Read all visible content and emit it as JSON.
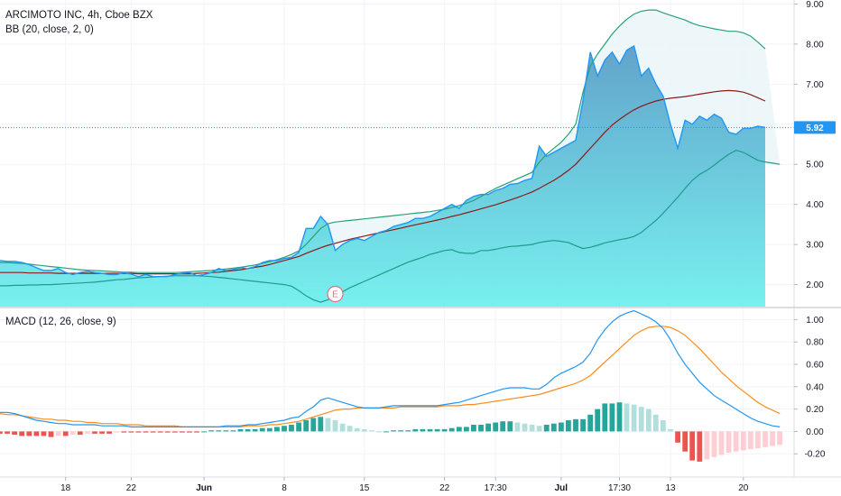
{
  "header": {
    "title": "ARCIMOTO INC, 4h, Cboe BZX",
    "bb_label": "BB (20, close, 2, 0)",
    "macd_label": "MACD (12, 26, close, 9)",
    "earnings_marker": "E"
  },
  "colors": {
    "price_line": "#2196f3",
    "price_fill_top": "#5b9fc9",
    "price_fill_bottom": "#70f0ee",
    "bb_upper": "#26a278",
    "bb_basis": "#8b1a1a",
    "bb_lower": "#1e9c8c",
    "bb_band_fill": "#e8f5f7",
    "macd_line": "#2196f3",
    "signal_line": "#ff8c1a",
    "hist_pos_strong": "#26a69a",
    "hist_pos_weak": "#b2dfdb",
    "hist_neg_strong": "#ef5350",
    "hist_neg_weak": "#ffcdd2",
    "last_price_badge": "#2196f3",
    "earnings_marker": "#e86b7f"
  },
  "chart_data": [
    {
      "type": "line",
      "name": "price",
      "title": "ARCIMOTO INC, 4h, Cboe BZX",
      "ylim": [
        1.45,
        9.1
      ],
      "yticks": [
        "9.00",
        "8.00",
        "7.00",
        "6.00",
        "5.00",
        "4.00",
        "3.00",
        "2.00"
      ],
      "last_price": "5.92",
      "x_ticks": [
        "18",
        "22",
        "Jun",
        "8",
        "15",
        "22",
        "17:30",
        "Jul",
        "17:30",
        "13",
        "20"
      ],
      "x_tick_index": [
        9,
        18,
        28,
        39,
        50,
        61,
        68,
        77,
        85,
        92,
        102
      ],
      "earnings_index": 46,
      "close": [
        2.6,
        2.58,
        2.58,
        2.55,
        2.5,
        2.42,
        2.35,
        2.35,
        2.4,
        2.3,
        2.25,
        2.3,
        2.33,
        2.3,
        2.28,
        2.25,
        2.25,
        2.3,
        2.26,
        2.2,
        2.25,
        2.2,
        2.2,
        2.2,
        2.25,
        2.28,
        2.3,
        2.22,
        2.25,
        2.3,
        2.4,
        2.35,
        2.38,
        2.42,
        2.4,
        2.45,
        2.55,
        2.6,
        2.6,
        2.65,
        2.68,
        2.8,
        3.4,
        3.4,
        3.7,
        3.5,
        2.85,
        3.0,
        3.1,
        3.15,
        3.1,
        3.2,
        3.3,
        3.35,
        3.45,
        3.5,
        3.55,
        3.65,
        3.65,
        3.7,
        3.8,
        3.9,
        4.0,
        3.9,
        4.1,
        4.2,
        4.25,
        4.25,
        4.35,
        4.4,
        4.5,
        4.52,
        4.6,
        4.65,
        5.45,
        5.2,
        5.3,
        5.4,
        5.5,
        5.6,
        6.6,
        7.8,
        7.2,
        7.6,
        7.8,
        7.5,
        7.85,
        7.95,
        7.2,
        7.4,
        7.0,
        6.7,
        6.0,
        5.4,
        6.1,
        6.0,
        6.2,
        6.1,
        6.25,
        6.15,
        5.8,
        5.75,
        5.9,
        5.9,
        5.95,
        5.92
      ],
      "bb_upper": [
        2.55,
        2.55,
        2.54,
        2.53,
        2.51,
        2.49,
        2.47,
        2.45,
        2.43,
        2.41,
        2.39,
        2.37,
        2.36,
        2.35,
        2.34,
        2.33,
        2.32,
        2.31,
        2.31,
        2.3,
        2.3,
        2.3,
        2.3,
        2.3,
        2.3,
        2.31,
        2.32,
        2.33,
        2.34,
        2.35,
        2.37,
        2.39,
        2.41,
        2.43,
        2.46,
        2.49,
        2.53,
        2.57,
        2.62,
        2.68,
        2.75,
        2.84,
        3.0,
        3.2,
        3.4,
        3.52,
        3.56,
        3.58,
        3.6,
        3.62,
        3.64,
        3.66,
        3.68,
        3.7,
        3.72,
        3.74,
        3.76,
        3.78,
        3.8,
        3.82,
        3.85,
        3.88,
        3.92,
        3.97,
        4.03,
        4.1,
        4.2,
        4.3,
        4.4,
        4.48,
        4.56,
        4.64,
        4.72,
        4.8,
        5.05,
        5.25,
        5.4,
        5.55,
        5.75,
        6.0,
        6.8,
        7.45,
        7.75,
        8.0,
        8.25,
        8.45,
        8.62,
        8.75,
        8.82,
        8.85,
        8.85,
        8.78,
        8.72,
        8.66,
        8.6,
        8.52,
        8.46,
        8.42,
        8.38,
        8.35,
        8.32,
        8.32,
        8.28,
        8.2,
        8.05,
        7.88
      ],
      "bb_basis": [
        2.3,
        2.3,
        2.3,
        2.3,
        2.29,
        2.29,
        2.29,
        2.29,
        2.28,
        2.28,
        2.28,
        2.28,
        2.28,
        2.28,
        2.28,
        2.28,
        2.28,
        2.28,
        2.28,
        2.27,
        2.27,
        2.27,
        2.27,
        2.27,
        2.27,
        2.27,
        2.27,
        2.28,
        2.29,
        2.3,
        2.31,
        2.33,
        2.35,
        2.37,
        2.4,
        2.43,
        2.46,
        2.5,
        2.55,
        2.6,
        2.65,
        2.7,
        2.78,
        2.85,
        2.92,
        2.98,
        3.03,
        3.08,
        3.13,
        3.17,
        3.21,
        3.25,
        3.29,
        3.33,
        3.37,
        3.41,
        3.45,
        3.49,
        3.53,
        3.57,
        3.61,
        3.65,
        3.7,
        3.74,
        3.79,
        3.84,
        3.89,
        3.94,
        3.99,
        4.05,
        4.11,
        4.17,
        4.24,
        4.31,
        4.4,
        4.5,
        4.6,
        4.72,
        4.85,
        5.0,
        5.2,
        5.4,
        5.6,
        5.8,
        5.98,
        6.12,
        6.25,
        6.36,
        6.45,
        6.52,
        6.58,
        6.62,
        6.65,
        6.67,
        6.69,
        6.72,
        6.75,
        6.78,
        6.81,
        6.83,
        6.84,
        6.83,
        6.8,
        6.74,
        6.66,
        6.58
      ],
      "bb_lower": [
        1.97,
        1.97,
        1.98,
        1.98,
        1.99,
        1.99,
        2.0,
        2.0,
        2.01,
        2.02,
        2.03,
        2.04,
        2.05,
        2.06,
        2.08,
        2.1,
        2.12,
        2.13,
        2.15,
        2.17,
        2.18,
        2.19,
        2.2,
        2.21,
        2.22,
        2.22,
        2.22,
        2.22,
        2.21,
        2.2,
        2.18,
        2.16,
        2.14,
        2.12,
        2.1,
        2.08,
        2.06,
        2.04,
        2.02,
        2.0,
        1.96,
        1.85,
        1.72,
        1.62,
        1.56,
        1.62,
        1.72,
        1.82,
        1.92,
        2.0,
        2.08,
        2.16,
        2.24,
        2.32,
        2.4,
        2.48,
        2.56,
        2.62,
        2.68,
        2.75,
        2.8,
        2.85,
        2.87,
        2.8,
        2.78,
        2.78,
        2.85,
        2.85,
        2.88,
        2.92,
        2.95,
        2.96,
        2.98,
        3.0,
        3.05,
        3.08,
        3.1,
        3.08,
        3.05,
        2.97,
        2.9,
        2.93,
        2.98,
        3.04,
        3.08,
        3.12,
        3.15,
        3.2,
        3.3,
        3.45,
        3.6,
        3.78,
        3.98,
        4.18,
        4.4,
        4.6,
        4.75,
        4.85,
        4.98,
        5.12,
        5.25,
        5.35,
        5.3,
        5.2,
        5.1,
        5.06,
        5.03,
        5.0
      ]
    },
    {
      "type": "bar",
      "name": "macd",
      "title": "MACD (12, 26, close, 9)",
      "ylim": [
        -0.4,
        1.1
      ],
      "yticks": [
        "1.00",
        "0.80",
        "0.60",
        "0.40",
        "0.20",
        "0.00",
        "-0.20"
      ],
      "macd": [
        0.17,
        0.17,
        0.16,
        0.14,
        0.12,
        0.1,
        0.09,
        0.08,
        0.07,
        0.07,
        0.06,
        0.06,
        0.06,
        0.06,
        0.05,
        0.05,
        0.05,
        0.05,
        0.04,
        0.04,
        0.04,
        0.04,
        0.04,
        0.04,
        0.04,
        0.04,
        0.04,
        0.04,
        0.04,
        0.04,
        0.04,
        0.05,
        0.05,
        0.05,
        0.06,
        0.06,
        0.07,
        0.08,
        0.09,
        0.1,
        0.12,
        0.13,
        0.18,
        0.22,
        0.28,
        0.3,
        0.28,
        0.26,
        0.24,
        0.22,
        0.21,
        0.21,
        0.21,
        0.22,
        0.23,
        0.23,
        0.23,
        0.23,
        0.23,
        0.23,
        0.23,
        0.24,
        0.25,
        0.26,
        0.28,
        0.3,
        0.32,
        0.34,
        0.36,
        0.38,
        0.39,
        0.39,
        0.39,
        0.38,
        0.38,
        0.42,
        0.48,
        0.52,
        0.55,
        0.58,
        0.62,
        0.7,
        0.82,
        0.91,
        0.98,
        1.03,
        1.06,
        1.08,
        1.05,
        1.02,
        0.98,
        0.92,
        0.82,
        0.7,
        0.6,
        0.52,
        0.44,
        0.38,
        0.32,
        0.28,
        0.24,
        0.2,
        0.16,
        0.12,
        0.09,
        0.07,
        0.05,
        0.04
      ],
      "signal": [
        0.16,
        0.15,
        0.15,
        0.14,
        0.13,
        0.12,
        0.11,
        0.11,
        0.1,
        0.1,
        0.09,
        0.09,
        0.08,
        0.08,
        0.07,
        0.07,
        0.07,
        0.06,
        0.06,
        0.06,
        0.05,
        0.05,
        0.05,
        0.05,
        0.05,
        0.04,
        0.04,
        0.04,
        0.04,
        0.04,
        0.04,
        0.04,
        0.04,
        0.04,
        0.05,
        0.05,
        0.05,
        0.06,
        0.06,
        0.07,
        0.08,
        0.09,
        0.11,
        0.13,
        0.15,
        0.17,
        0.19,
        0.2,
        0.2,
        0.21,
        0.21,
        0.21,
        0.21,
        0.21,
        0.21,
        0.22,
        0.22,
        0.22,
        0.22,
        0.22,
        0.22,
        0.23,
        0.23,
        0.23,
        0.24,
        0.24,
        0.25,
        0.26,
        0.27,
        0.28,
        0.29,
        0.3,
        0.31,
        0.32,
        0.33,
        0.35,
        0.37,
        0.39,
        0.41,
        0.43,
        0.46,
        0.5,
        0.56,
        0.62,
        0.68,
        0.74,
        0.8,
        0.86,
        0.9,
        0.93,
        0.94,
        0.94,
        0.93,
        0.9,
        0.86,
        0.8,
        0.74,
        0.67,
        0.6,
        0.53,
        0.47,
        0.41,
        0.36,
        0.31,
        0.26,
        0.22,
        0.19,
        0.16
      ],
      "histogram": [
        -0.02,
        -0.02,
        -0.03,
        -0.04,
        -0.04,
        -0.04,
        -0.04,
        -0.05,
        -0.04,
        -0.04,
        -0.03,
        -0.03,
        -0.02,
        -0.02,
        -0.02,
        -0.02,
        -0.01,
        -0.01,
        -0.01,
        -0.01,
        -0.01,
        -0.01,
        -0.01,
        -0.01,
        -0.01,
        -0.01,
        -0.01,
        -0.01,
        0.0,
        0.01,
        0.01,
        0.01,
        0.01,
        0.02,
        0.02,
        0.02,
        0.03,
        0.03,
        0.04,
        0.05,
        0.06,
        0.08,
        0.1,
        0.12,
        0.13,
        0.12,
        0.1,
        0.07,
        0.05,
        0.03,
        0.02,
        0.01,
        0.0,
        0.0,
        0.01,
        0.01,
        0.01,
        0.02,
        0.02,
        0.02,
        0.02,
        0.02,
        0.03,
        0.04,
        0.04,
        0.06,
        0.06,
        0.07,
        0.08,
        0.09,
        0.09,
        0.08,
        0.07,
        0.06,
        0.05,
        0.06,
        0.07,
        0.08,
        0.1,
        0.11,
        0.11,
        0.15,
        0.2,
        0.25,
        0.25,
        0.26,
        0.25,
        0.24,
        0.22,
        0.2,
        0.15,
        0.1,
        0.02,
        -0.1,
        -0.18,
        -0.26,
        -0.27,
        -0.25,
        -0.23,
        -0.21,
        -0.19,
        -0.18,
        -0.17,
        -0.16,
        -0.15,
        -0.14,
        -0.13,
        -0.12
      ]
    }
  ]
}
